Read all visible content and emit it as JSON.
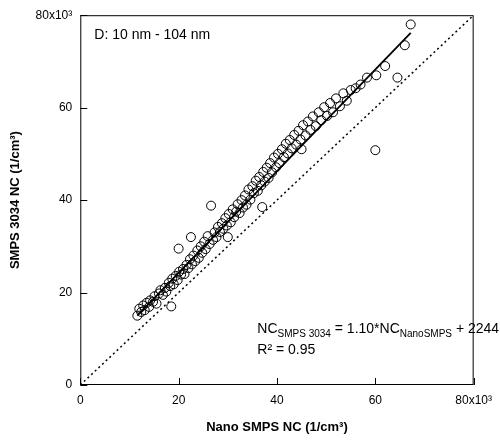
{
  "chart_data": {
    "type": "scatter",
    "annotation": "D: 10 nm - 104 nm",
    "x_label": "Nano SMPS NC (1/cm³)",
    "y_label": "SMPS 3034 NC (1/cm³)",
    "x": [
      11600,
      12000,
      12400,
      12800,
      13100,
      13500,
      14000,
      14200,
      14800,
      15100,
      15500,
      16000,
      16300,
      16800,
      17200,
      17500,
      18000,
      18300,
      18700,
      19000,
      19400,
      19800,
      20100,
      20500,
      20900,
      21200,
      21600,
      22000,
      22300,
      22700,
      23000,
      23400,
      23800,
      24100,
      24500,
      24800,
      25200,
      25500,
      25900,
      26300,
      26600,
      27000,
      27300,
      27700,
      28000,
      28400,
      28800,
      29100,
      29500,
      29800,
      30200,
      30600,
      31000,
      31300,
      31700,
      32000,
      32400,
      32800,
      33100,
      33500,
      33800,
      34200,
      34600,
      35000,
      35300,
      35700,
      36100,
      36400,
      36800,
      37200,
      37500,
      37900,
      38300,
      38600,
      39000,
      39400,
      39800,
      40200,
      40500,
      41000,
      41400,
      41800,
      42200,
      42600,
      43000,
      43500,
      43900,
      44400,
      44800,
      45300,
      45800,
      46300,
      46800,
      47300,
      47900,
      48500,
      49000,
      49600,
      50200,
      50800,
      51400,
      52000,
      52800,
      53500,
      54200,
      55000,
      56000,
      57000,
      58300,
      60000,
      60200,
      62000,
      64500,
      67200,
      66000,
      20000,
      18500,
      30000,
      37000,
      45000,
      22500
    ],
    "values": [
      15000,
      16500,
      15800,
      17200,
      16200,
      17800,
      16900,
      18300,
      18000,
      19200,
      17600,
      19800,
      20500,
      19500,
      21000,
      20200,
      22100,
      21400,
      23000,
      21800,
      23600,
      22700,
      24500,
      23900,
      25100,
      24000,
      26000,
      25300,
      27200,
      26100,
      28000,
      26800,
      29100,
      27500,
      30000,
      28600,
      31000,
      29400,
      32200,
      30500,
      38800,
      31400,
      33000,
      32000,
      34200,
      33100,
      35000,
      33800,
      36100,
      34500,
      37000,
      35200,
      38000,
      36300,
      37500,
      39100,
      37200,
      40000,
      38400,
      41000,
      39000,
      42300,
      40100,
      43000,
      41500,
      44200,
      42000,
      45000,
      43200,
      46100,
      44000,
      47000,
      44800,
      48000,
      46000,
      49200,
      47100,
      50000,
      48000,
      51000,
      49300,
      52200,
      50100,
      53000,
      51200,
      54100,
      52000,
      55000,
      53100,
      56200,
      54000,
      57000,
      55200,
      58100,
      56000,
      59000,
      57300,
      60100,
      58200,
      61000,
      59000,
      62000,
      60300,
      63100,
      61500,
      63800,
      64200,
      65000,
      66500,
      50800,
      67000,
      69000,
      66500,
      78000,
      73500,
      29500,
      17000,
      32000,
      38500,
      51000,
      32000
    ],
    "color": "#000000",
    "marker": "open_circle",
    "fit": {
      "slope": 1.1,
      "intercept": 2244,
      "x_range": [
        11600,
        67200
      ],
      "line_style": "solid"
    },
    "reference_line": {
      "slope": 1,
      "intercept": 0,
      "line_style": "dotted"
    },
    "equation": {
      "parts": [
        "NC",
        "SMPS 3034",
        " = 1.10*NC",
        "NanoSMPS",
        " + 2244"
      ]
    },
    "r_squared": "R² = 0.95",
    "xlim": [
      0,
      80000
    ],
    "ylim": [
      0,
      80000
    ],
    "xticks": [
      0,
      {
        "value": 20000,
        "label": "20"
      },
      {
        "value": 40000,
        "label": "40"
      },
      {
        "value": 60000,
        "label": "60"
      },
      {
        "value": 80000,
        "label": "80x10³"
      }
    ],
    "yticks": [
      0,
      {
        "value": 20000,
        "label": "20"
      },
      {
        "value": 40000,
        "label": "40"
      },
      {
        "value": 60000,
        "label": "60"
      },
      {
        "value": 80000,
        "label": "80x10³"
      }
    ],
    "grid": false
  }
}
